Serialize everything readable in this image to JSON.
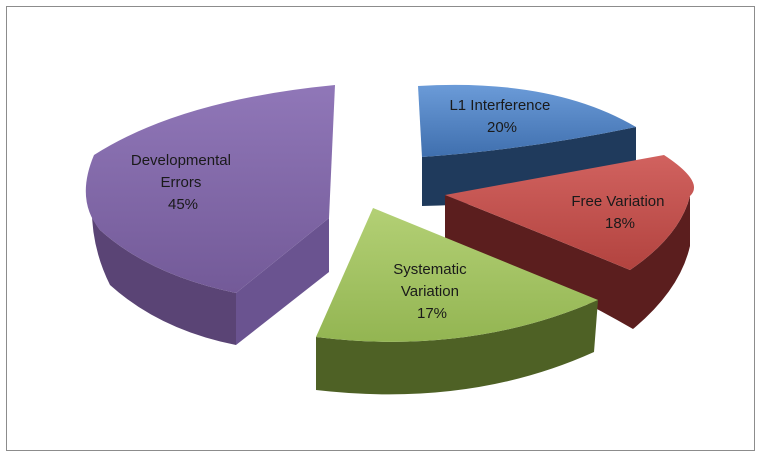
{
  "chart_data": {
    "type": "pie",
    "style": "exploded-3d",
    "legend": "none",
    "slices": [
      {
        "label": [
          "L1 Interference"
        ],
        "value": 20,
        "display": "20%",
        "color": "#4f81bd"
      },
      {
        "label": [
          "Free Variation"
        ],
        "value": 18,
        "display": "18%",
        "color": "#c0504d"
      },
      {
        "label": [
          "Systematic",
          "Variation"
        ],
        "value": 17,
        "display": "17%",
        "color": "#9bbb59"
      },
      {
        "label": [
          "Developmental",
          "Errors"
        ],
        "value": 45,
        "display": "45%",
        "color": "#8064a2"
      }
    ]
  }
}
